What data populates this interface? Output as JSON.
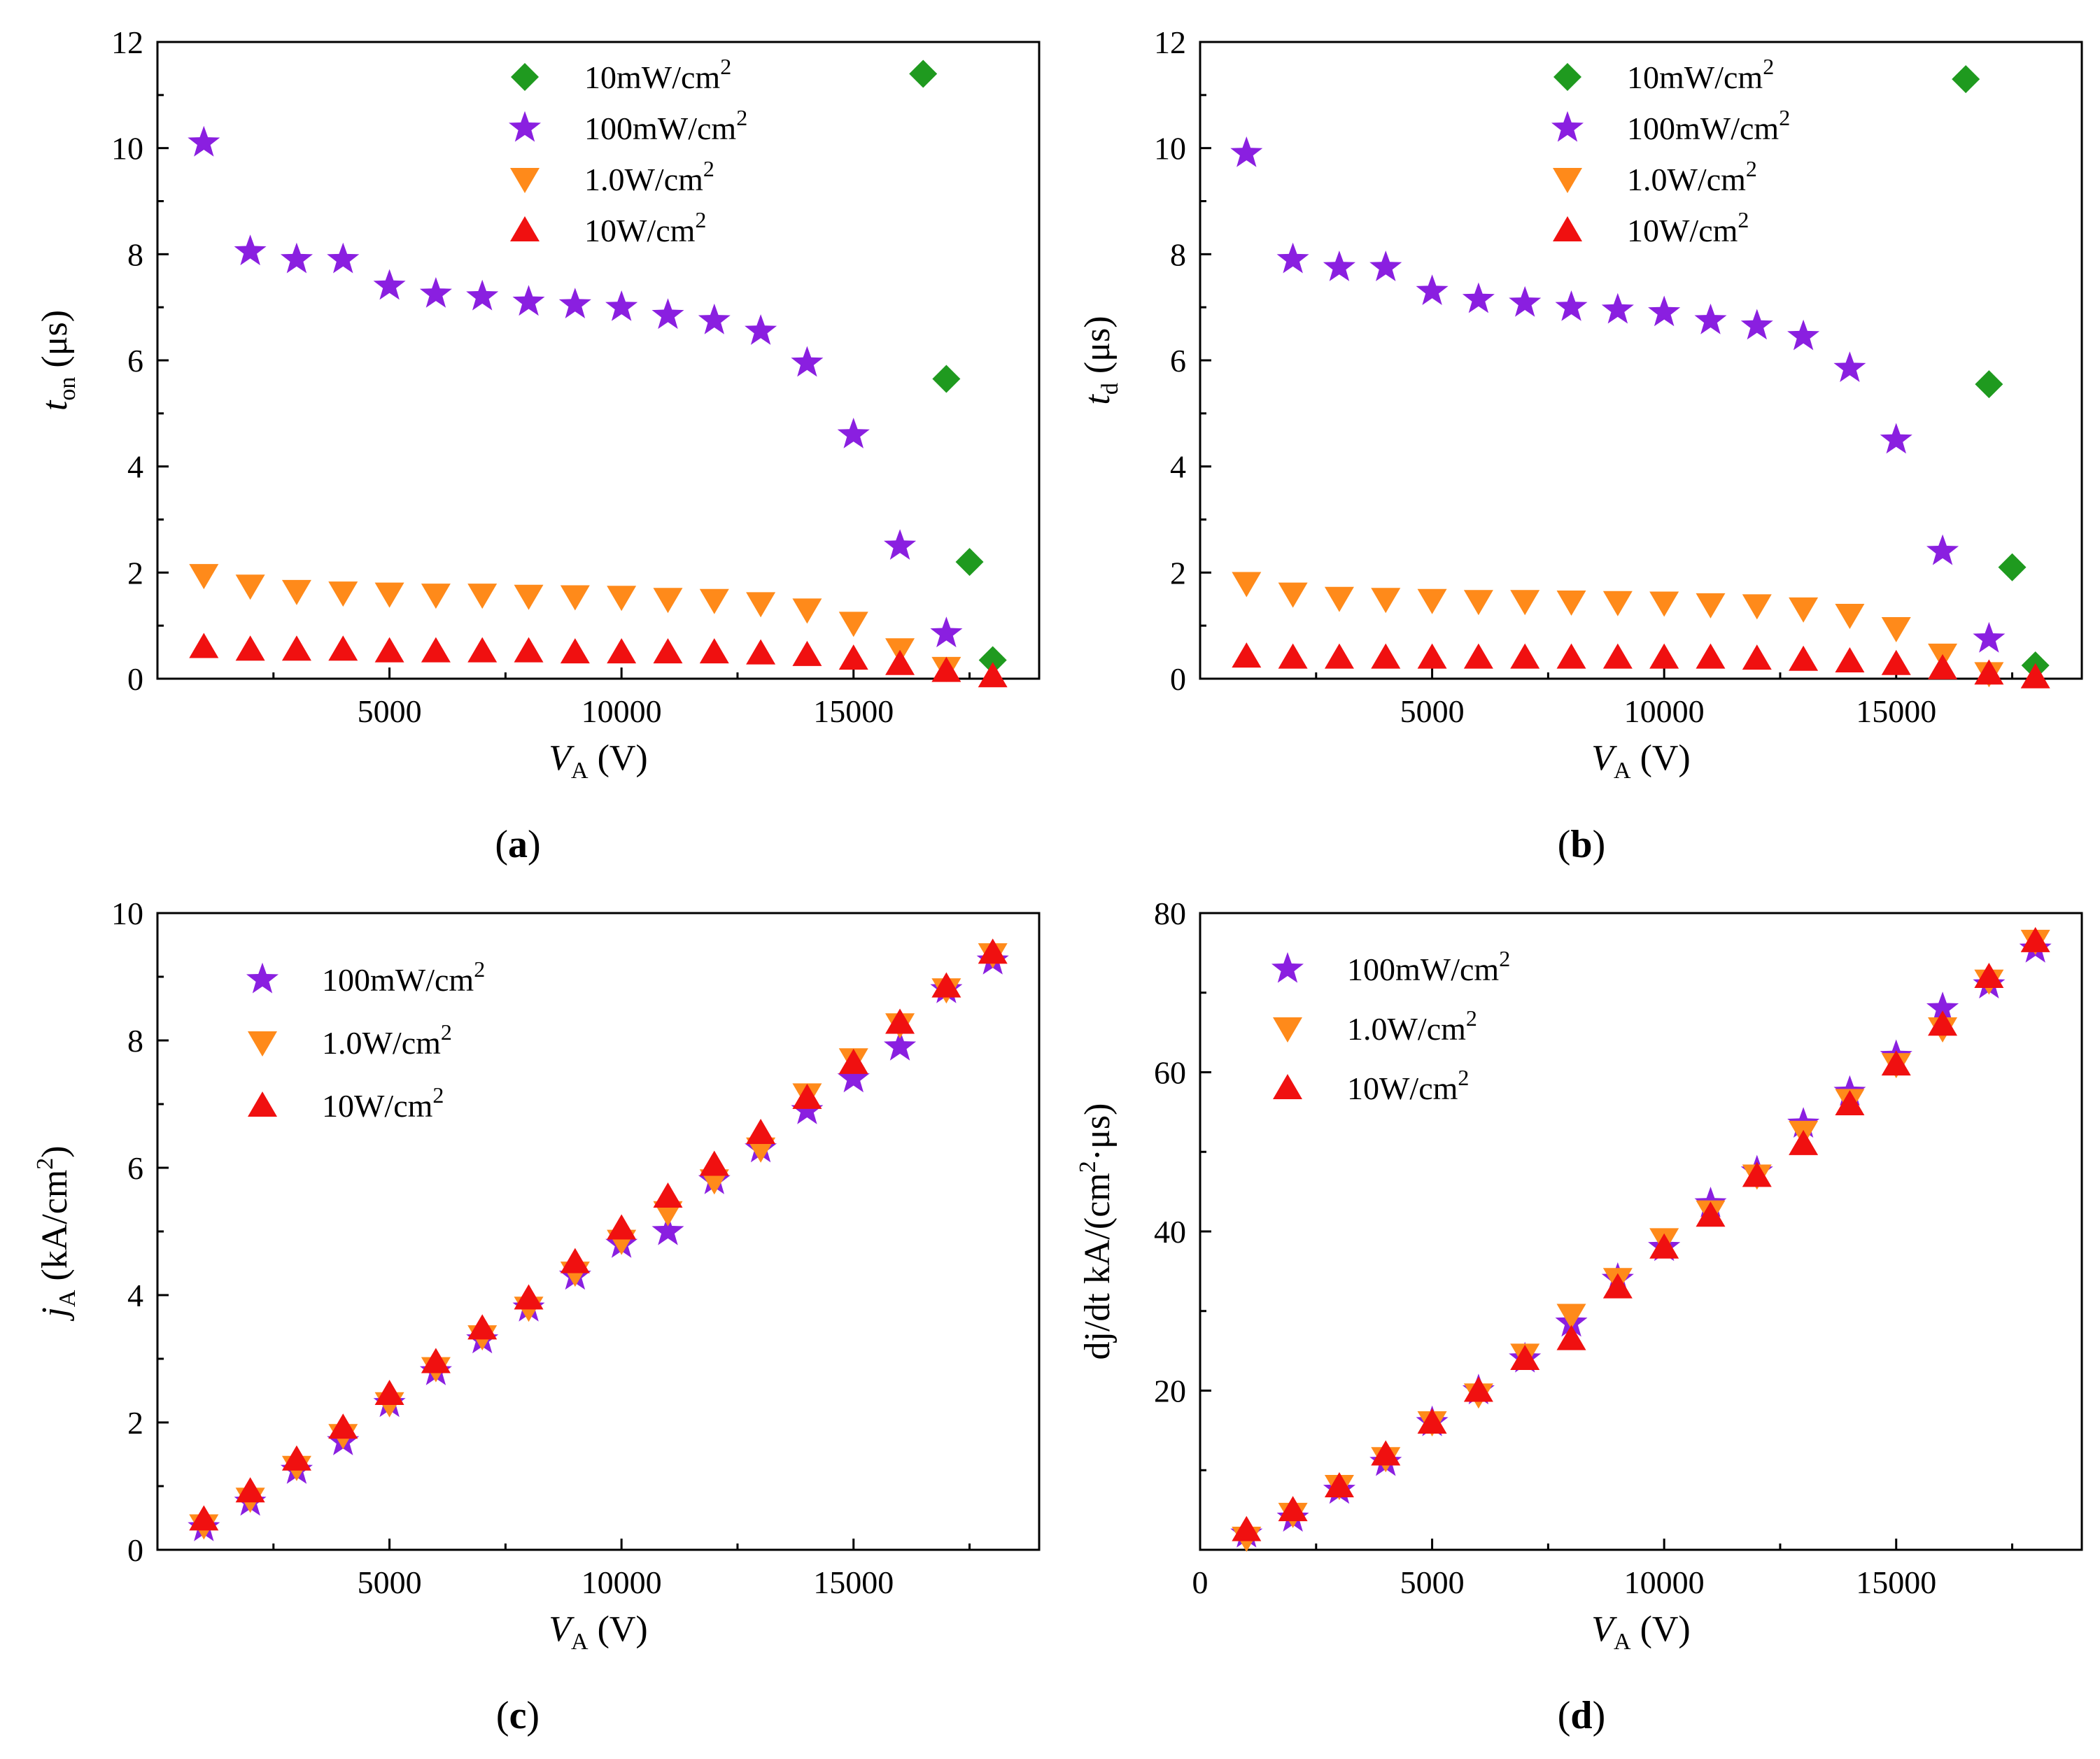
{
  "colors": {
    "c10mW": "#1f9a1f",
    "c100mW": "#8a1fe0",
    "c1W": "#ff8a1a",
    "c10W": "#f01010"
  },
  "chart_data": [
    {
      "id": "a",
      "type": "scatter",
      "panel_label": "a",
      "ylabel_main": "t",
      "ylabel_sub": "on",
      "ylabel_unit": "(μs)",
      "xlabel_main": "V",
      "xlabel_sub": "A",
      "xlabel_unit": "(V)",
      "xlim": [
        0,
        19000
      ],
      "ylim": [
        0,
        12
      ],
      "xticks": [
        5000,
        10000,
        15000
      ],
      "yticks": [
        0,
        2,
        4,
        6,
        8,
        10,
        12
      ],
      "legend": "top-right",
      "series": [
        {
          "name": "10mW/cm",
          "sup": "2",
          "marker": "diamond",
          "color": "c10mW",
          "x": [
            16500,
            17000,
            17500,
            18000
          ],
          "y": [
            11.4,
            5.65,
            2.2,
            0.35
          ]
        },
        {
          "name": "100mW/cm",
          "sup": "2",
          "marker": "star",
          "color": "c100mW",
          "x": [
            1000,
            2000,
            3000,
            4000,
            5000,
            6000,
            7000,
            8000,
            9000,
            10000,
            11000,
            12000,
            13000,
            14000,
            15000,
            16000,
            17000
          ],
          "y": [
            10.1,
            8.05,
            7.9,
            7.9,
            7.4,
            7.25,
            7.2,
            7.1,
            7.05,
            7.0,
            6.85,
            6.75,
            6.55,
            5.95,
            4.6,
            2.5,
            0.85
          ]
        },
        {
          "name": "1.0W/cm",
          "sup": "2",
          "marker": "tri-down",
          "color": "c1W",
          "x": [
            1000,
            2000,
            3000,
            4000,
            5000,
            6000,
            7000,
            8000,
            9000,
            10000,
            11000,
            12000,
            13000,
            14000,
            15000,
            16000,
            17000
          ],
          "y": [
            1.95,
            1.75,
            1.65,
            1.62,
            1.6,
            1.58,
            1.58,
            1.56,
            1.55,
            1.54,
            1.5,
            1.48,
            1.42,
            1.3,
            1.05,
            0.55,
            0.2
          ]
        },
        {
          "name": "10W/cm",
          "sup": "2",
          "marker": "tri-up",
          "color": "c10W",
          "x": [
            1000,
            2000,
            3000,
            4000,
            5000,
            6000,
            7000,
            8000,
            9000,
            10000,
            11000,
            12000,
            13000,
            14000,
            15000,
            16000,
            17000,
            18000
          ],
          "y": [
            0.6,
            0.55,
            0.55,
            0.55,
            0.52,
            0.52,
            0.52,
            0.52,
            0.5,
            0.5,
            0.5,
            0.5,
            0.48,
            0.45,
            0.38,
            0.28,
            0.15,
            0.05
          ]
        }
      ]
    },
    {
      "id": "b",
      "type": "scatter",
      "panel_label": "b",
      "ylabel_main": "t",
      "ylabel_sub": "d",
      "ylabel_unit": "(μs)",
      "xlabel_main": "V",
      "xlabel_sub": "A",
      "xlabel_unit": "(V)",
      "xlim": [
        0,
        19000
      ],
      "ylim": [
        0,
        12
      ],
      "xticks": [
        5000,
        10000,
        15000
      ],
      "yticks": [
        0,
        2,
        4,
        6,
        8,
        10,
        12
      ],
      "legend": "top-right",
      "series": [
        {
          "name": "10mW/cm",
          "sup": "2",
          "marker": "diamond",
          "color": "c10mW",
          "x": [
            16500,
            17000,
            17500,
            18000
          ],
          "y": [
            11.3,
            5.55,
            2.1,
            0.25
          ]
        },
        {
          "name": "100mW/cm",
          "sup": "2",
          "marker": "star",
          "color": "c100mW",
          "x": [
            1000,
            2000,
            3000,
            4000,
            5000,
            6000,
            7000,
            8000,
            9000,
            10000,
            11000,
            12000,
            13000,
            14000,
            15000,
            16000,
            17000
          ],
          "y": [
            9.9,
            7.9,
            7.75,
            7.75,
            7.3,
            7.15,
            7.08,
            7.0,
            6.95,
            6.9,
            6.75,
            6.65,
            6.45,
            5.85,
            4.5,
            2.4,
            0.75
          ]
        },
        {
          "name": "1.0W/cm",
          "sup": "2",
          "marker": "tri-down",
          "color": "c1W",
          "x": [
            1000,
            2000,
            3000,
            4000,
            5000,
            6000,
            7000,
            8000,
            9000,
            10000,
            11000,
            12000,
            13000,
            14000,
            15000,
            16000,
            17000
          ],
          "y": [
            1.8,
            1.6,
            1.52,
            1.5,
            1.48,
            1.46,
            1.46,
            1.45,
            1.44,
            1.43,
            1.4,
            1.38,
            1.32,
            1.2,
            0.95,
            0.45,
            0.1
          ]
        },
        {
          "name": "10W/cm",
          "sup": "2",
          "marker": "tri-up",
          "color": "c10W",
          "x": [
            1000,
            2000,
            3000,
            4000,
            5000,
            6000,
            7000,
            8000,
            9000,
            10000,
            11000,
            12000,
            13000,
            14000,
            15000,
            16000,
            17000,
            18000
          ],
          "y": [
            0.42,
            0.4,
            0.4,
            0.4,
            0.4,
            0.4,
            0.4,
            0.4,
            0.4,
            0.4,
            0.4,
            0.38,
            0.36,
            0.33,
            0.28,
            0.2,
            0.1,
            0.03
          ]
        }
      ]
    },
    {
      "id": "c",
      "type": "scatter",
      "panel_label": "c",
      "ylabel_main": "j",
      "ylabel_sub": "A",
      "ylabel_unit": "(kA/cm",
      "ylabel_unit_sup": "2",
      "ylabel_unit_end": ")",
      "xlabel_main": "V",
      "xlabel_sub": "A",
      "xlabel_unit": "(V)",
      "xlim": [
        0,
        19000
      ],
      "ylim": [
        0,
        10
      ],
      "xticks": [
        5000,
        10000,
        15000
      ],
      "yticks": [
        0,
        2,
        4,
        6,
        8,
        10
      ],
      "legend": "top-left",
      "series": [
        {
          "name": "100mW/cm",
          "sup": "2",
          "marker": "star",
          "color": "c100mW",
          "x": [
            1000,
            2000,
            3000,
            4000,
            5000,
            6000,
            7000,
            8000,
            9000,
            10000,
            11000,
            12000,
            13000,
            14000,
            15000,
            16000,
            17000,
            18000
          ],
          "y": [
            0.35,
            0.75,
            1.25,
            1.7,
            2.3,
            2.8,
            3.3,
            3.8,
            4.3,
            4.8,
            5.0,
            5.8,
            6.3,
            6.9,
            7.4,
            7.9,
            8.8,
            9.25
          ]
        },
        {
          "name": "1.0W/cm",
          "sup": "2",
          "marker": "tri-down",
          "color": "c1W",
          "x": [
            1000,
            2000,
            3000,
            4000,
            5000,
            6000,
            7000,
            8000,
            9000,
            10000,
            11000,
            12000,
            13000,
            14000,
            15000,
            16000,
            17000,
            18000
          ],
          "y": [
            0.38,
            0.8,
            1.3,
            1.8,
            2.3,
            2.85,
            3.35,
            3.8,
            4.35,
            4.85,
            5.3,
            5.8,
            6.3,
            7.15,
            7.7,
            8.25,
            8.8,
            9.35
          ]
        },
        {
          "name": "10W/cm",
          "sup": "2",
          "marker": "tri-up",
          "color": "c10W",
          "x": [
            1000,
            2000,
            3000,
            4000,
            5000,
            6000,
            7000,
            8000,
            9000,
            10000,
            11000,
            12000,
            13000,
            14000,
            15000,
            16000,
            17000,
            18000
          ],
          "y": [
            0.48,
            0.92,
            1.42,
            1.92,
            2.45,
            2.95,
            3.48,
            3.95,
            4.52,
            5.05,
            5.55,
            6.05,
            6.55,
            7.1,
            7.65,
            8.28,
            8.85,
            9.38
          ]
        }
      ]
    },
    {
      "id": "d",
      "type": "scatter",
      "panel_label": "d",
      "ylabel_main": "dj/dt kA/(cm",
      "ylabel_sup": "2",
      "ylabel_end": "·μs)",
      "xlabel_main": "V",
      "xlabel_sub": "A",
      "xlabel_unit": "(V)",
      "xlim": [
        0,
        19000
      ],
      "ylim": [
        0,
        80
      ],
      "xticks": [
        0,
        5000,
        10000,
        15000
      ],
      "yticks": [
        20,
        40,
        60,
        80
      ],
      "legend": "top-left",
      "series": [
        {
          "name": "100mW/cm",
          "sup": "2",
          "marker": "star",
          "color": "c100mW",
          "x": [
            1000,
            2000,
            3000,
            4000,
            5000,
            6000,
            7000,
            8000,
            9000,
            10000,
            11000,
            12000,
            13000,
            14000,
            15000,
            16000,
            17000,
            18000
          ],
          "y": [
            2.0,
            4.0,
            7.5,
            11.0,
            16.0,
            20.0,
            24.0,
            28.5,
            34.0,
            38.0,
            43.5,
            47.5,
            53.5,
            57.5,
            62.0,
            68.0,
            71.0,
            75.5
          ]
        },
        {
          "name": "1.0W/cm",
          "sup": "2",
          "marker": "tri-down",
          "color": "c1W",
          "x": [
            1000,
            2000,
            3000,
            4000,
            5000,
            6000,
            7000,
            8000,
            9000,
            10000,
            11000,
            12000,
            13000,
            14000,
            15000,
            16000,
            17000,
            18000
          ],
          "y": [
            1.5,
            4.5,
            8.0,
            11.5,
            16.0,
            19.5,
            24.5,
            29.5,
            34.0,
            39.0,
            42.5,
            47.0,
            52.5,
            56.5,
            61.0,
            65.5,
            71.5,
            76.5
          ]
        },
        {
          "name": "10W/cm",
          "sup": "2",
          "marker": "tri-up",
          "color": "c10W",
          "x": [
            1000,
            2000,
            3000,
            4000,
            5000,
            6000,
            7000,
            8000,
            9000,
            10000,
            11000,
            12000,
            13000,
            14000,
            15000,
            16000,
            17000,
            18000
          ],
          "y": [
            2.5,
            5.0,
            8.0,
            12.0,
            16.0,
            20.0,
            24.0,
            26.5,
            33.0,
            38.0,
            42.0,
            47.0,
            51.0,
            56.0,
            61.0,
            66.0,
            72.0,
            76.5
          ]
        }
      ]
    }
  ]
}
